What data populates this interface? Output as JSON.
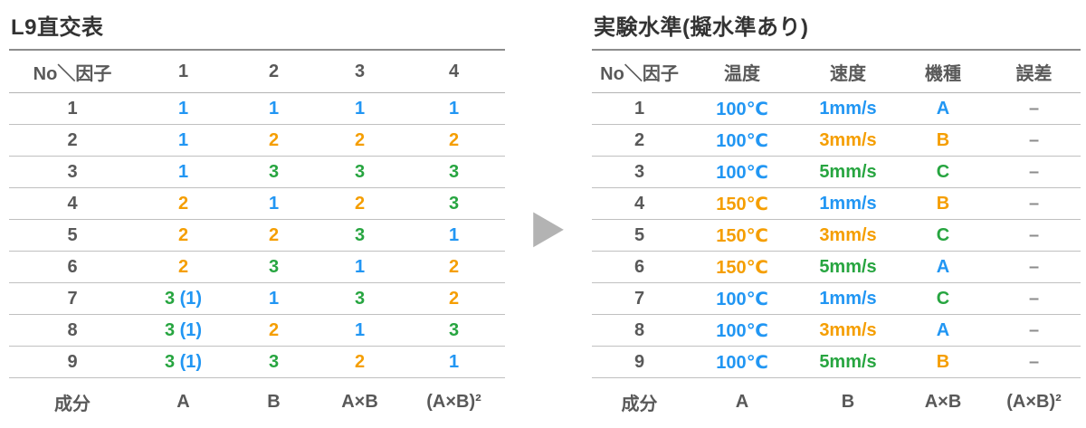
{
  "arrow": {
    "name": "right-arrow-icon",
    "glyph": "▶"
  },
  "colors": {
    "level1_blue": "#2196f3",
    "level2_orange": "#f59e00",
    "level3_green": "#27a540",
    "dash_gray": "#8c8c8c",
    "header_gray": "#595959",
    "title_dark": "#333333"
  },
  "left_table": {
    "title": "L9直交表",
    "headers": [
      "No＼因子",
      "1",
      "2",
      "3",
      "4"
    ],
    "rows": [
      {
        "no": "1",
        "cells": [
          [
            [
              "1",
              "l1"
            ]
          ],
          [
            [
              "1",
              "l1"
            ]
          ],
          [
            [
              "1",
              "l1"
            ]
          ],
          [
            [
              "1",
              "l1"
            ]
          ]
        ]
      },
      {
        "no": "2",
        "cells": [
          [
            [
              "1",
              "l1"
            ]
          ],
          [
            [
              "2",
              "l2"
            ]
          ],
          [
            [
              "2",
              "l2"
            ]
          ],
          [
            [
              "2",
              "l2"
            ]
          ]
        ]
      },
      {
        "no": "3",
        "cells": [
          [
            [
              "1",
              "l1"
            ]
          ],
          [
            [
              "3",
              "l3"
            ]
          ],
          [
            [
              "3",
              "l3"
            ]
          ],
          [
            [
              "3",
              "l3"
            ]
          ]
        ]
      },
      {
        "no": "4",
        "cells": [
          [
            [
              "2",
              "l2"
            ]
          ],
          [
            [
              "1",
              "l1"
            ]
          ],
          [
            [
              "2",
              "l2"
            ]
          ],
          [
            [
              "3",
              "l3"
            ]
          ]
        ]
      },
      {
        "no": "5",
        "cells": [
          [
            [
              "2",
              "l2"
            ]
          ],
          [
            [
              "2",
              "l2"
            ]
          ],
          [
            [
              "3",
              "l3"
            ]
          ],
          [
            [
              "1",
              "l1"
            ]
          ]
        ]
      },
      {
        "no": "6",
        "cells": [
          [
            [
              "2",
              "l2"
            ]
          ],
          [
            [
              "3",
              "l3"
            ]
          ],
          [
            [
              "1",
              "l1"
            ]
          ],
          [
            [
              "2",
              "l2"
            ]
          ]
        ]
      },
      {
        "no": "7",
        "cells": [
          [
            [
              "3",
              "l3"
            ],
            [
              " (1)",
              "l1"
            ]
          ],
          [
            [
              "1",
              "l1"
            ]
          ],
          [
            [
              "3",
              "l3"
            ]
          ],
          [
            [
              "2",
              "l2"
            ]
          ]
        ]
      },
      {
        "no": "8",
        "cells": [
          [
            [
              "3",
              "l3"
            ],
            [
              " (1)",
              "l1"
            ]
          ],
          [
            [
              "2",
              "l2"
            ]
          ],
          [
            [
              "1",
              "l1"
            ]
          ],
          [
            [
              "3",
              "l3"
            ]
          ]
        ]
      },
      {
        "no": "9",
        "cells": [
          [
            [
              "3",
              "l3"
            ],
            [
              " (1)",
              "l1"
            ]
          ],
          [
            [
              "3",
              "l3"
            ]
          ],
          [
            [
              "2",
              "l2"
            ]
          ],
          [
            [
              "1",
              "l1"
            ]
          ]
        ]
      }
    ],
    "footer": [
      "成分",
      "A",
      "B",
      "A×B",
      "(A×B)²"
    ]
  },
  "right_table": {
    "title": "実験水準(擬水準あり)",
    "headers": [
      "No＼因子",
      "温度",
      "速度",
      "機種",
      "誤差"
    ],
    "rows": [
      {
        "no": "1",
        "cells": [
          [
            [
              "100℃",
              "l1"
            ]
          ],
          [
            [
              "1mm/s",
              "l1"
            ]
          ],
          [
            [
              "A",
              "l1"
            ]
          ],
          [
            [
              "–",
              "dash"
            ]
          ]
        ]
      },
      {
        "no": "2",
        "cells": [
          [
            [
              "100℃",
              "l1"
            ]
          ],
          [
            [
              "3mm/s",
              "l2"
            ]
          ],
          [
            [
              "B",
              "l2"
            ]
          ],
          [
            [
              "–",
              "dash"
            ]
          ]
        ]
      },
      {
        "no": "3",
        "cells": [
          [
            [
              "100℃",
              "l1"
            ]
          ],
          [
            [
              "5mm/s",
              "l3"
            ]
          ],
          [
            [
              "C",
              "l3"
            ]
          ],
          [
            [
              "–",
              "dash"
            ]
          ]
        ]
      },
      {
        "no": "4",
        "cells": [
          [
            [
              "150℃",
              "l2"
            ]
          ],
          [
            [
              "1mm/s",
              "l1"
            ]
          ],
          [
            [
              "B",
              "l2"
            ]
          ],
          [
            [
              "–",
              "dash"
            ]
          ]
        ]
      },
      {
        "no": "5",
        "cells": [
          [
            [
              "150℃",
              "l2"
            ]
          ],
          [
            [
              "3mm/s",
              "l2"
            ]
          ],
          [
            [
              "C",
              "l3"
            ]
          ],
          [
            [
              "–",
              "dash"
            ]
          ]
        ]
      },
      {
        "no": "6",
        "cells": [
          [
            [
              "150℃",
              "l2"
            ]
          ],
          [
            [
              "5mm/s",
              "l3"
            ]
          ],
          [
            [
              "A",
              "l1"
            ]
          ],
          [
            [
              "–",
              "dash"
            ]
          ]
        ]
      },
      {
        "no": "7",
        "cells": [
          [
            [
              "100℃",
              "l1"
            ]
          ],
          [
            [
              "1mm/s",
              "l1"
            ]
          ],
          [
            [
              "C",
              "l3"
            ]
          ],
          [
            [
              "–",
              "dash"
            ]
          ]
        ]
      },
      {
        "no": "8",
        "cells": [
          [
            [
              "100℃",
              "l1"
            ]
          ],
          [
            [
              "3mm/s",
              "l2"
            ]
          ],
          [
            [
              "A",
              "l1"
            ]
          ],
          [
            [
              "–",
              "dash"
            ]
          ]
        ]
      },
      {
        "no": "9",
        "cells": [
          [
            [
              "100℃",
              "l1"
            ]
          ],
          [
            [
              "5mm/s",
              "l3"
            ]
          ],
          [
            [
              "B",
              "l2"
            ]
          ],
          [
            [
              "–",
              "dash"
            ]
          ]
        ]
      }
    ],
    "footer": [
      "成分",
      "A",
      "B",
      "A×B",
      "(A×B)²"
    ]
  }
}
